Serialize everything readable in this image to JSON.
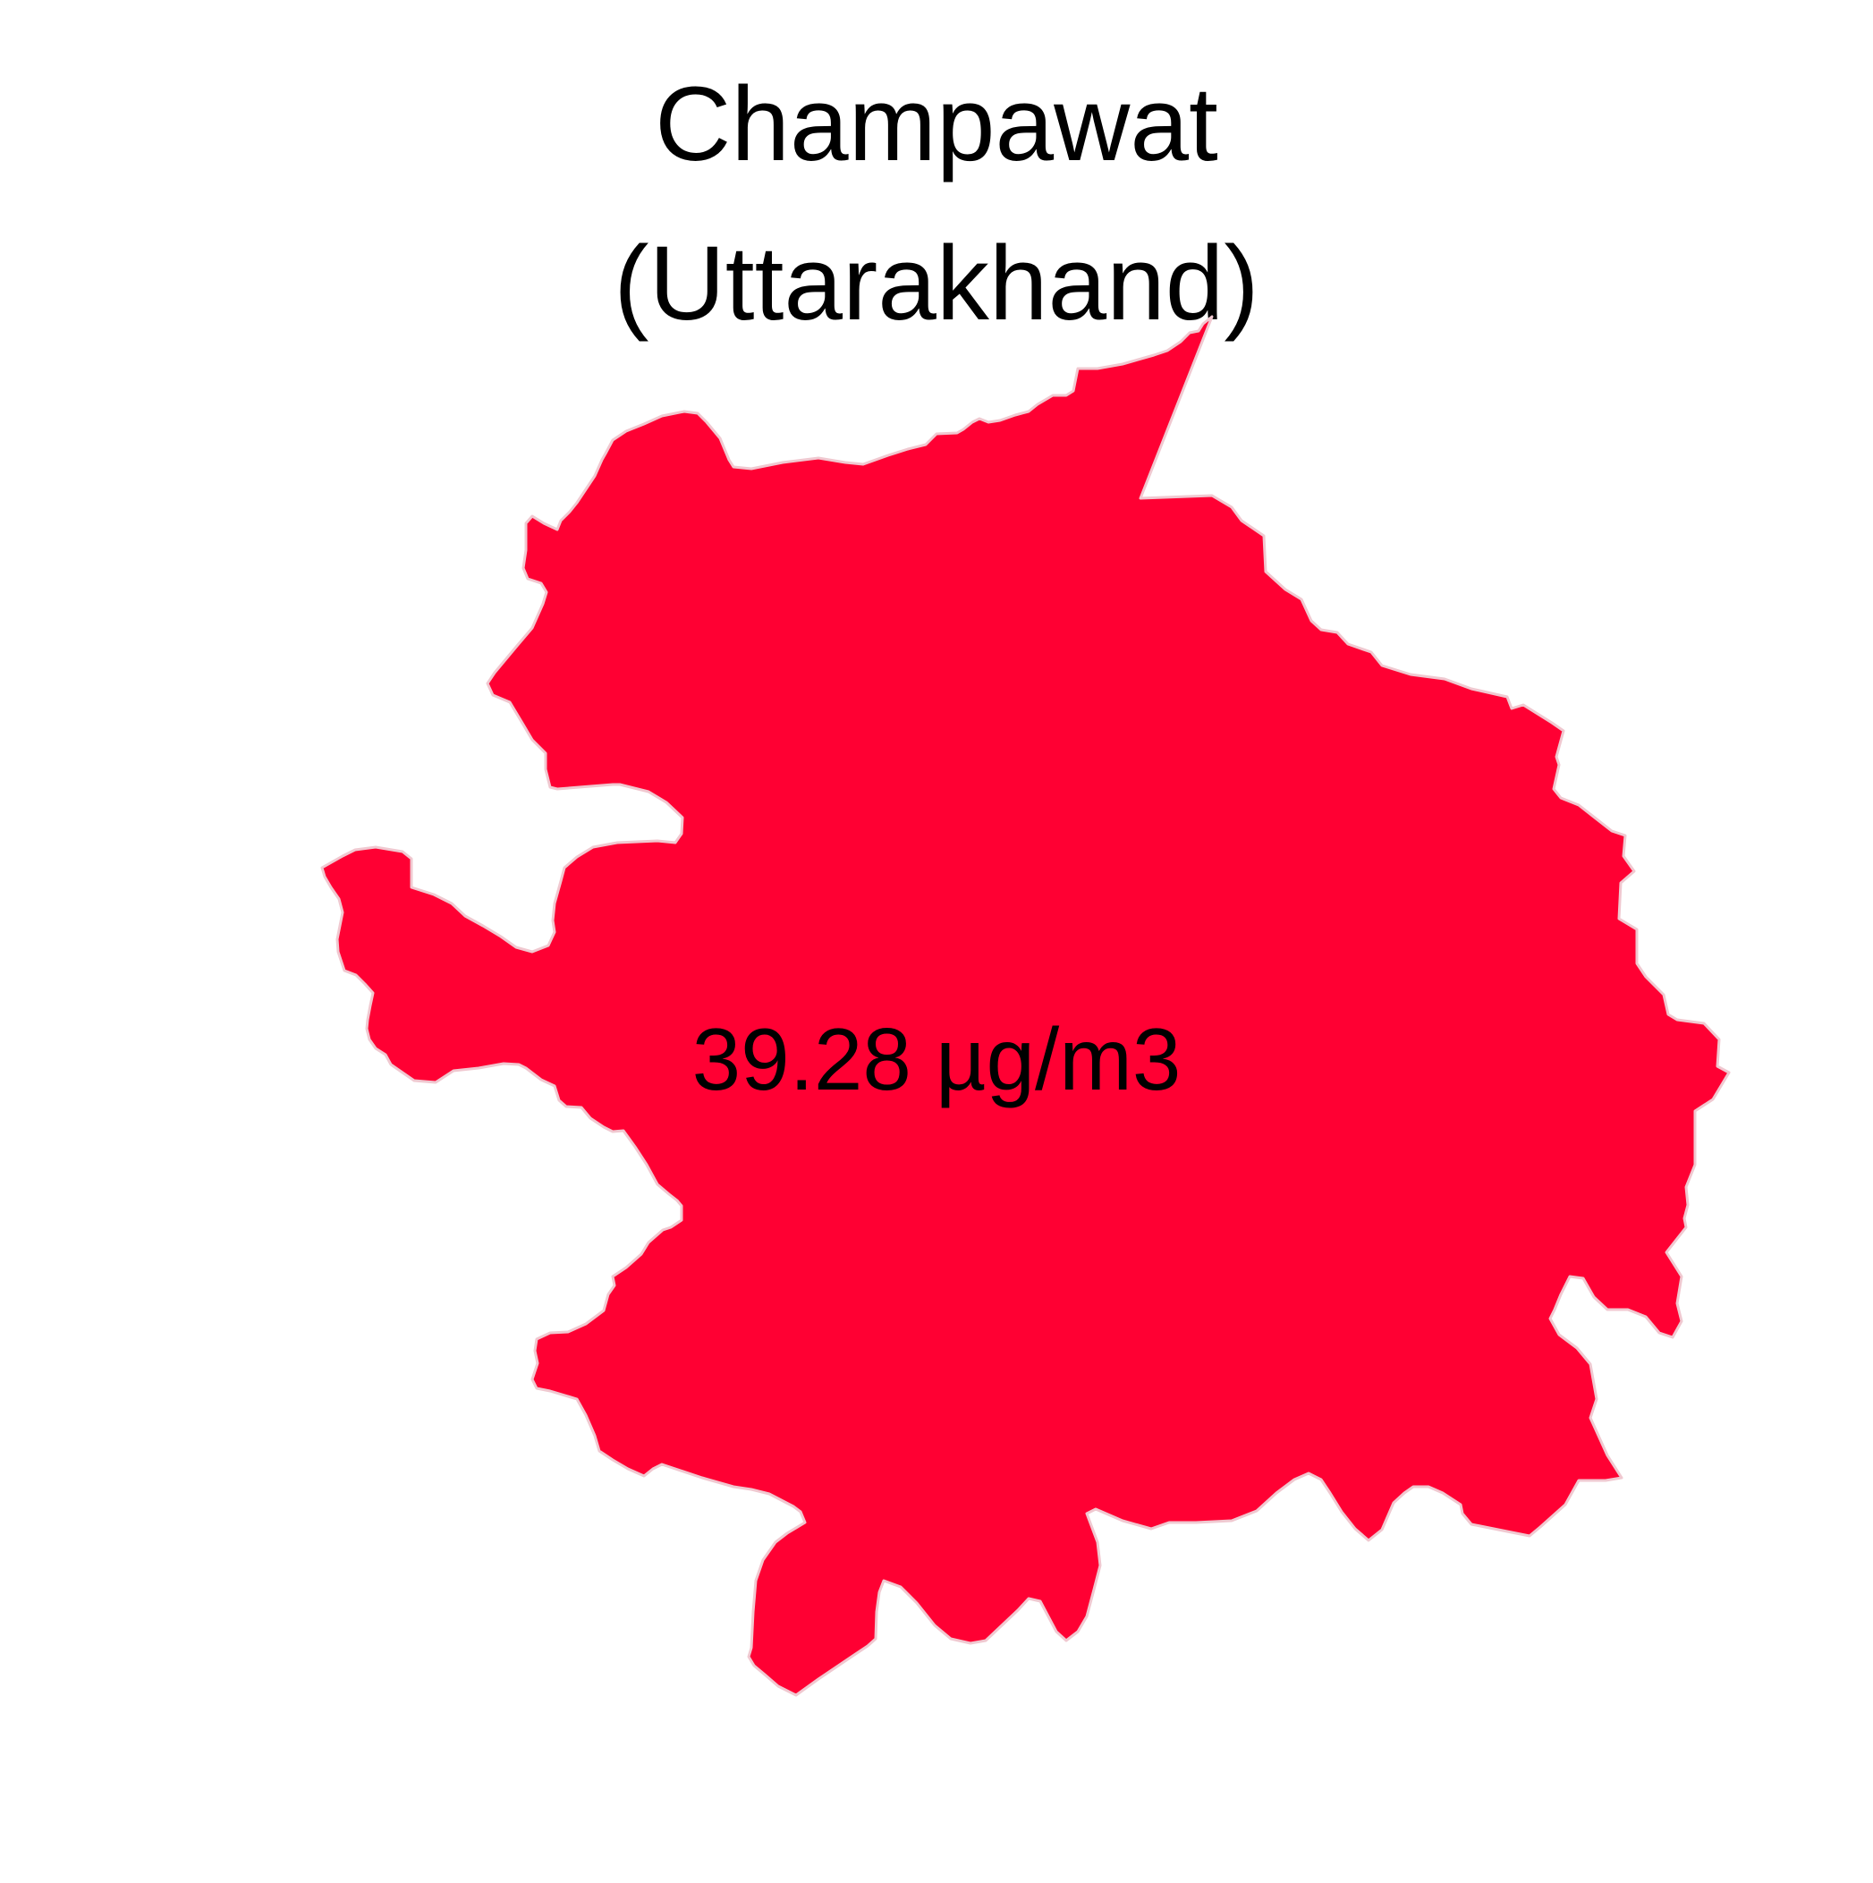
{
  "title": {
    "line1": "Champawat",
    "line2": "(Uttarakhand)"
  },
  "map": {
    "region_name": "Champawat",
    "state": "Uttarakhand",
    "value_label": "39.28 µg/m3",
    "fill_color": "#FF0033",
    "border_color": "#F0C8D0"
  }
}
